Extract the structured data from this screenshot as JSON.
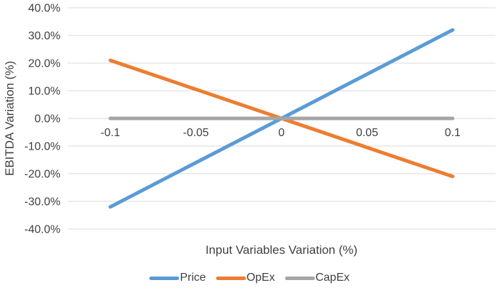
{
  "chart_data": {
    "type": "line",
    "title": "",
    "xlabel": "Input Variables Variation (%)",
    "ylabel": "EBITDA Variation (%)",
    "x": [
      -0.1,
      -0.05,
      0,
      0.05,
      0.1
    ],
    "series": [
      {
        "name": "Price",
        "color": "#5B9BD5",
        "values": [
          -32,
          -16,
          0,
          16,
          32
        ]
      },
      {
        "name": "OpEx",
        "color": "#ED7D31",
        "values": [
          21,
          10.5,
          0,
          -10.5,
          -21
        ]
      },
      {
        "name": "CapEx",
        "color": "#A5A5A5",
        "values": [
          0,
          0,
          0,
          0,
          0
        ]
      }
    ],
    "xlim": [
      -0.125,
      0.125
    ],
    "ylim": [
      -40,
      40
    ],
    "x_tick_values": [
      -0.1,
      -0.05,
      0,
      0.05,
      0.1
    ],
    "x_tick_labels": [
      "-0.1",
      "-0.05",
      "0",
      "0.05",
      "0.1"
    ],
    "y_tick_values": [
      40,
      30,
      20,
      10,
      0,
      -10,
      -20,
      -30,
      -40
    ],
    "y_tick_labels": [
      "40.0%",
      "30.0%",
      "20.0%",
      "10.0%",
      "0.0%",
      "-10.0%",
      "-20.0%",
      "-30.0%",
      "-40.0%"
    ],
    "grid": true,
    "legend_position": "bottom",
    "colors": {
      "gridline": "#D9D9D9",
      "text": "#3F3F3F",
      "background": "#FFFFFF"
    }
  }
}
